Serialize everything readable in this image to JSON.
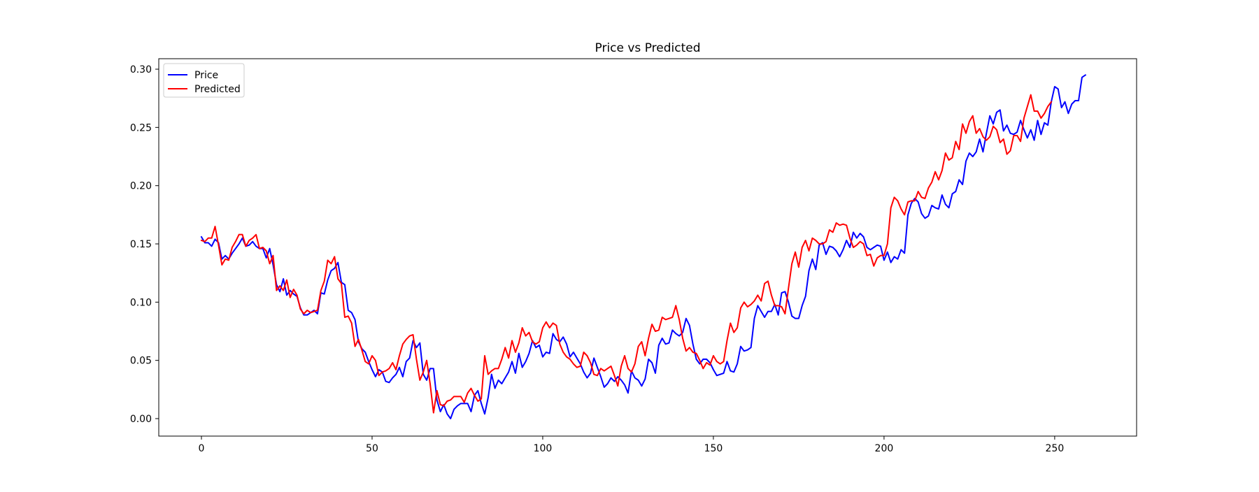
{
  "chart_data": {
    "type": "line",
    "title": "Price vs Predicted",
    "xlabel": "",
    "ylabel": "",
    "xlim": [
      -12.5,
      274
    ],
    "ylim": [
      -0.015,
      0.309
    ],
    "xticks": [
      0,
      50,
      100,
      150,
      200,
      250
    ],
    "xtick_labels": [
      "0",
      "50",
      "100",
      "150",
      "200",
      "250"
    ],
    "yticks": [
      0.0,
      0.05,
      0.1,
      0.15,
      0.2,
      0.25,
      0.3
    ],
    "ytick_labels": [
      "0.00",
      "0.05",
      "0.10",
      "0.15",
      "0.20",
      "0.25",
      "0.30"
    ],
    "grid": false,
    "legend_position": "top-left",
    "series": [
      {
        "name": "Price",
        "color": "#0000ff",
        "x_start": 0,
        "values": [
          0.156,
          0.151,
          0.151,
          0.148,
          0.154,
          0.151,
          0.137,
          0.14,
          0.137,
          0.142,
          0.146,
          0.15,
          0.155,
          0.148,
          0.149,
          0.152,
          0.148,
          0.146,
          0.146,
          0.138,
          0.146,
          0.132,
          0.115,
          0.109,
          0.12,
          0.106,
          0.11,
          0.107,
          0.105,
          0.095,
          0.089,
          0.089,
          0.091,
          0.093,
          0.09,
          0.108,
          0.107,
          0.119,
          0.127,
          0.129,
          0.134,
          0.117,
          0.115,
          0.093,
          0.091,
          0.085,
          0.066,
          0.06,
          0.057,
          0.049,
          0.042,
          0.036,
          0.042,
          0.04,
          0.032,
          0.031,
          0.035,
          0.038,
          0.044,
          0.036,
          0.049,
          0.052,
          0.067,
          0.061,
          0.065,
          0.038,
          0.033,
          0.043,
          0.043,
          0.016,
          0.006,
          0.012,
          0.004,
          0.0,
          0.008,
          0.011,
          0.013,
          0.013,
          0.013,
          0.006,
          0.02,
          0.024,
          0.013,
          0.004,
          0.018,
          0.038,
          0.026,
          0.033,
          0.03,
          0.035,
          0.04,
          0.049,
          0.039,
          0.056,
          0.044,
          0.049,
          0.056,
          0.067,
          0.061,
          0.063,
          0.053,
          0.057,
          0.056,
          0.073,
          0.068,
          0.066,
          0.07,
          0.064,
          0.053,
          0.057,
          0.052,
          0.047,
          0.04,
          0.035,
          0.039,
          0.052,
          0.044,
          0.036,
          0.027,
          0.03,
          0.035,
          0.032,
          0.036,
          0.033,
          0.029,
          0.022,
          0.041,
          0.035,
          0.033,
          0.028,
          0.034,
          0.051,
          0.048,
          0.039,
          0.063,
          0.069,
          0.064,
          0.065,
          0.076,
          0.073,
          0.071,
          0.074,
          0.086,
          0.08,
          0.064,
          0.051,
          0.047,
          0.051,
          0.051,
          0.048,
          0.042,
          0.037,
          0.038,
          0.039,
          0.049,
          0.041,
          0.04,
          0.047,
          0.062,
          0.058,
          0.059,
          0.061,
          0.086,
          0.097,
          0.092,
          0.087,
          0.092,
          0.092,
          0.098,
          0.089,
          0.108,
          0.109,
          0.1,
          0.088,
          0.086,
          0.086,
          0.097,
          0.105,
          0.127,
          0.137,
          0.128,
          0.149,
          0.151,
          0.141,
          0.148,
          0.147,
          0.144,
          0.139,
          0.145,
          0.153,
          0.147,
          0.16,
          0.155,
          0.159,
          0.156,
          0.147,
          0.145,
          0.147,
          0.149,
          0.148,
          0.136,
          0.143,
          0.134,
          0.139,
          0.137,
          0.145,
          0.142,
          0.175,
          0.185,
          0.189,
          0.186,
          0.176,
          0.172,
          0.174,
          0.183,
          0.181,
          0.18,
          0.192,
          0.184,
          0.181,
          0.193,
          0.195,
          0.205,
          0.201,
          0.221,
          0.228,
          0.225,
          0.229,
          0.24,
          0.229,
          0.245,
          0.26,
          0.253,
          0.263,
          0.265,
          0.247,
          0.252,
          0.245,
          0.244,
          0.246,
          0.256,
          0.248,
          0.241,
          0.248,
          0.239,
          0.256,
          0.244,
          0.254,
          0.252,
          0.272,
          0.285,
          0.283,
          0.267,
          0.272,
          0.262,
          0.27,
          0.273,
          0.273,
          0.293,
          0.295
        ]
      },
      {
        "name": "Predicted",
        "color": "#ff0000",
        "x_start": 0,
        "values": [
          0.153,
          0.152,
          0.155,
          0.155,
          0.165,
          0.149,
          0.132,
          0.137,
          0.136,
          0.147,
          0.152,
          0.158,
          0.158,
          0.148,
          0.153,
          0.155,
          0.158,
          0.146,
          0.147,
          0.144,
          0.133,
          0.14,
          0.11,
          0.114,
          0.11,
          0.119,
          0.104,
          0.111,
          0.106,
          0.094,
          0.09,
          0.093,
          0.091,
          0.092,
          0.093,
          0.11,
          0.118,
          0.136,
          0.133,
          0.139,
          0.12,
          0.116,
          0.087,
          0.088,
          0.082,
          0.062,
          0.068,
          0.059,
          0.049,
          0.047,
          0.054,
          0.05,
          0.037,
          0.04,
          0.041,
          0.043,
          0.048,
          0.042,
          0.054,
          0.064,
          0.068,
          0.071,
          0.072,
          0.051,
          0.033,
          0.04,
          0.05,
          0.03,
          0.005,
          0.024,
          0.012,
          0.011,
          0.015,
          0.016,
          0.019,
          0.019,
          0.019,
          0.014,
          0.022,
          0.026,
          0.02,
          0.015,
          0.017,
          0.054,
          0.038,
          0.041,
          0.043,
          0.043,
          0.051,
          0.061,
          0.052,
          0.067,
          0.057,
          0.065,
          0.078,
          0.071,
          0.074,
          0.066,
          0.064,
          0.066,
          0.078,
          0.083,
          0.078,
          0.082,
          0.08,
          0.064,
          0.057,
          0.053,
          0.051,
          0.047,
          0.044,
          0.045,
          0.057,
          0.054,
          0.048,
          0.038,
          0.037,
          0.043,
          0.041,
          0.043,
          0.045,
          0.037,
          0.028,
          0.045,
          0.054,
          0.043,
          0.04,
          0.047,
          0.062,
          0.066,
          0.054,
          0.069,
          0.081,
          0.075,
          0.076,
          0.087,
          0.085,
          0.086,
          0.087,
          0.097,
          0.085,
          0.069,
          0.058,
          0.061,
          0.057,
          0.056,
          0.05,
          0.043,
          0.048,
          0.046,
          0.054,
          0.049,
          0.047,
          0.049,
          0.067,
          0.082,
          0.074,
          0.078,
          0.095,
          0.1,
          0.096,
          0.098,
          0.101,
          0.106,
          0.101,
          0.116,
          0.118,
          0.106,
          0.097,
          0.097,
          0.096,
          0.09,
          0.112,
          0.133,
          0.143,
          0.13,
          0.147,
          0.153,
          0.144,
          0.155,
          0.153,
          0.15,
          0.15,
          0.152,
          0.162,
          0.16,
          0.168,
          0.166,
          0.167,
          0.166,
          0.155,
          0.147,
          0.149,
          0.152,
          0.15,
          0.14,
          0.141,
          0.131,
          0.138,
          0.14,
          0.14,
          0.15,
          0.181,
          0.19,
          0.187,
          0.18,
          0.175,
          0.186,
          0.187,
          0.187,
          0.195,
          0.19,
          0.189,
          0.198,
          0.203,
          0.212,
          0.205,
          0.213,
          0.228,
          0.222,
          0.224,
          0.238,
          0.231,
          0.253,
          0.245,
          0.255,
          0.26,
          0.245,
          0.249,
          0.242,
          0.239,
          0.242,
          0.251,
          0.248,
          0.237,
          0.24,
          0.227,
          0.23,
          0.243,
          0.243,
          0.238,
          0.258,
          0.268,
          0.278,
          0.264,
          0.264,
          0.258,
          0.262,
          0.268,
          0.272
        ]
      }
    ]
  }
}
